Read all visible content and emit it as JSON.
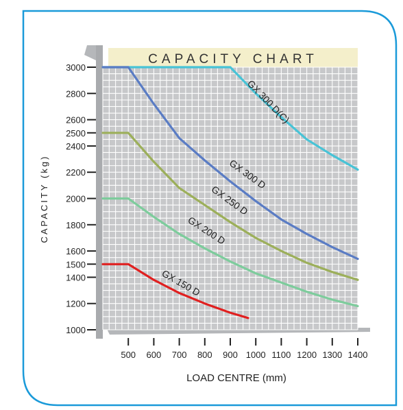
{
  "chart_data": {
    "type": "line",
    "title": "CAPACITY CHART",
    "xlabel": "LOAD CENTRE (mm)",
    "ylabel": "CAPACITY (kg)",
    "x_ticks": [
      500,
      600,
      700,
      800,
      900,
      1000,
      1100,
      1200,
      1300,
      1400
    ],
    "y_ticks": [
      1000,
      1200,
      1400,
      1500,
      1600,
      1800,
      2000,
      2200,
      2400,
      2500,
      2600,
      2800,
      3000
    ],
    "xlim": [
      400,
      1400
    ],
    "ylim": [
      1000,
      3000
    ],
    "grid": true,
    "series": [
      {
        "name": "GX 300 D(C)",
        "color": "#47c3d6",
        "points": [
          [
            400,
            3000
          ],
          [
            500,
            3000
          ],
          [
            600,
            3000
          ],
          [
            700,
            3000
          ],
          [
            800,
            3000
          ],
          [
            900,
            3000
          ],
          [
            1000,
            2800
          ],
          [
            1100,
            2620
          ],
          [
            1200,
            2450
          ],
          [
            1300,
            2330
          ],
          [
            1400,
            2220
          ]
        ]
      },
      {
        "name": "GX 300 D",
        "color": "#5a7cc4",
        "points": [
          [
            400,
            3000
          ],
          [
            500,
            3000
          ],
          [
            600,
            2720
          ],
          [
            700,
            2460
          ],
          [
            800,
            2290
          ],
          [
            900,
            2130
          ],
          [
            1000,
            1980
          ],
          [
            1100,
            1840
          ],
          [
            1200,
            1730
          ],
          [
            1300,
            1630
          ],
          [
            1400,
            1540
          ]
        ]
      },
      {
        "name": "GX 250 D",
        "color": "#9caf5a",
        "points": [
          [
            400,
            2500
          ],
          [
            500,
            2500
          ],
          [
            600,
            2280
          ],
          [
            700,
            2080
          ],
          [
            800,
            1950
          ],
          [
            900,
            1820
          ],
          [
            1000,
            1700
          ],
          [
            1100,
            1600
          ],
          [
            1200,
            1510
          ],
          [
            1300,
            1440
          ],
          [
            1400,
            1380
          ]
        ]
      },
      {
        "name": "GX 200 D",
        "color": "#7dcc9c",
        "points": [
          [
            400,
            2000
          ],
          [
            500,
            2000
          ],
          [
            600,
            1860
          ],
          [
            700,
            1730
          ],
          [
            800,
            1620
          ],
          [
            900,
            1520
          ],
          [
            1000,
            1430
          ],
          [
            1100,
            1360
          ],
          [
            1200,
            1290
          ],
          [
            1300,
            1230
          ],
          [
            1400,
            1180
          ]
        ]
      },
      {
        "name": "GX 150 D",
        "color": "#e02020",
        "points": [
          [
            400,
            1500
          ],
          [
            500,
            1500
          ],
          [
            600,
            1380
          ],
          [
            700,
            1280
          ],
          [
            800,
            1200
          ],
          [
            900,
            1130
          ],
          [
            970,
            1090
          ]
        ]
      }
    ]
  }
}
